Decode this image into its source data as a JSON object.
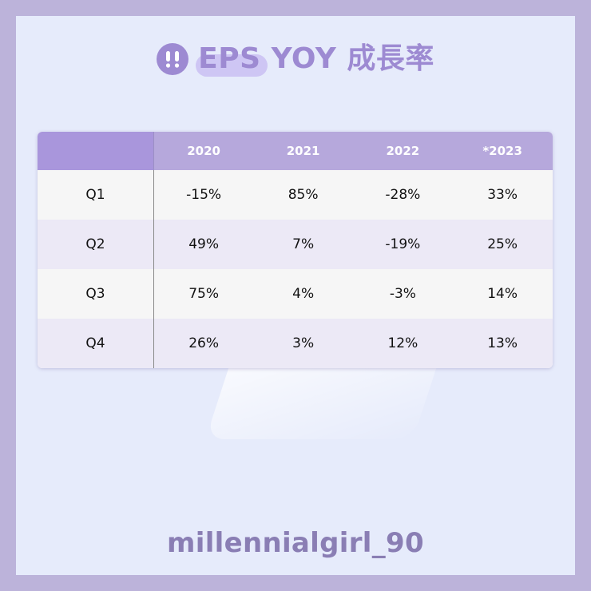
{
  "title": "EPS YOY 成長率",
  "footer": "millennialgirl_90",
  "colors": {
    "accent": "#9d8ad2",
    "header": "#b6a8dc",
    "background": "#e6ebfb",
    "border": "#bcb3da"
  },
  "chart_data": {
    "type": "table",
    "title": "EPS YOY 成長率",
    "columns": [
      "",
      "2020",
      "2021",
      "2022",
      "*2023"
    ],
    "rows": [
      [
        "Q1",
        "-15%",
        "85%",
        "-28%",
        "33%"
      ],
      [
        "Q2",
        "49%",
        "7%",
        "-19%",
        "25%"
      ],
      [
        "Q3",
        "75%",
        "4%",
        "-3%",
        "14%"
      ],
      [
        "Q4",
        "26%",
        "3%",
        "12%",
        "13%"
      ]
    ]
  }
}
